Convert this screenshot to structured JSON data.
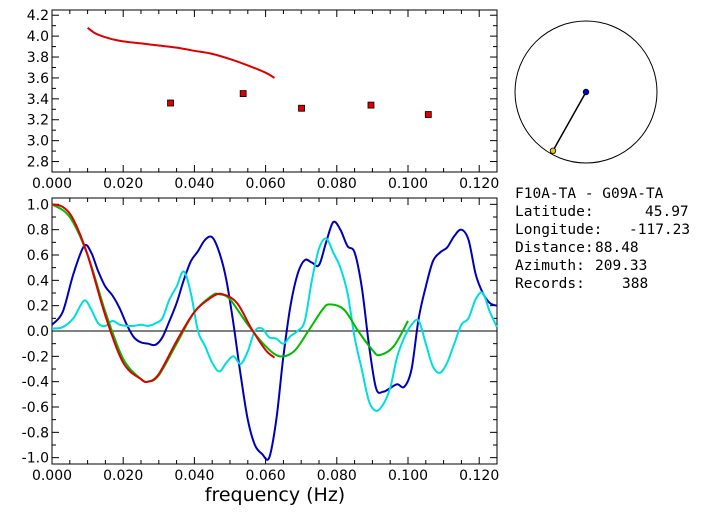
{
  "chart_data": [
    {
      "type": "scatter",
      "xlim": [
        0,
        0.125
      ],
      "ylim": [
        2.7,
        4.25
      ],
      "x_ticks": [
        0,
        0.02,
        0.04,
        0.06,
        0.08,
        0.1,
        0.12
      ],
      "x_tick_labels": [
        "0.000",
        "0.020",
        "0.040",
        "0.060",
        "0.080",
        "0.100",
        "0.120"
      ],
      "y_ticks": [
        2.8,
        3.0,
        3.2,
        3.4,
        3.6,
        3.8,
        4.0,
        4.2
      ],
      "y_tick_labels": [
        "2.8",
        "3.0",
        "3.2",
        "3.4",
        "3.6",
        "3.8",
        "4.0",
        "4.2"
      ],
      "series": [
        {
          "kind": "line",
          "color": "#dd0000",
          "x": [
            0.01,
            0.012,
            0.014,
            0.017,
            0.02,
            0.025,
            0.03,
            0.035,
            0.04,
            0.045,
            0.05,
            0.055,
            0.06,
            0.0625
          ],
          "y": [
            4.08,
            4.03,
            4.0,
            3.97,
            3.95,
            3.93,
            3.91,
            3.89,
            3.86,
            3.83,
            3.78,
            3.72,
            3.65,
            3.6
          ]
        },
        {
          "kind": "markers",
          "color": "#dd0000",
          "x": [
            0.0333,
            0.0537,
            0.0701,
            0.0896,
            0.1057
          ],
          "y": [
            3.36,
            3.45,
            3.31,
            3.34,
            3.25
          ]
        }
      ]
    },
    {
      "type": "line",
      "xlim": [
        0,
        0.125
      ],
      "ylim": [
        -1.05,
        1.05
      ],
      "x_ticks": [
        0,
        0.02,
        0.04,
        0.06,
        0.08,
        0.1,
        0.12
      ],
      "x_tick_labels": [
        "0.000",
        "0.020",
        "0.040",
        "0.060",
        "0.080",
        "0.100",
        "0.120"
      ],
      "y_ticks": [
        -1.0,
        -0.8,
        -0.6,
        -0.4,
        -0.2,
        0.0,
        0.2,
        0.4,
        0.6,
        0.8,
        1.0
      ],
      "y_tick_labels": [
        "-1.0",
        "-0.8",
        "-0.6",
        "-0.4",
        "-0.2",
        "0.0",
        "0.2",
        "0.4",
        "0.6",
        "0.8",
        "1.0"
      ],
      "xlabel": "frequency (Hz)",
      "series": [
        {
          "color": "#0000bb",
          "x": [
            0,
            0.003,
            0.006,
            0.009,
            0.011,
            0.013,
            0.015,
            0.017,
            0.019,
            0.021,
            0.023,
            0.025,
            0.027,
            0.029,
            0.031,
            0.033,
            0.035,
            0.037,
            0.039,
            0.041,
            0.043,
            0.045,
            0.047,
            0.049,
            0.051,
            0.053,
            0.055,
            0.057,
            0.059,
            0.061,
            0.063,
            0.065,
            0.067,
            0.069,
            0.071,
            0.073,
            0.075,
            0.077,
            0.079,
            0.081,
            0.083,
            0.085,
            0.087,
            0.089,
            0.091,
            0.093,
            0.095,
            0.097,
            0.099,
            0.101,
            0.103,
            0.105,
            0.107,
            0.109,
            0.111,
            0.113,
            0.115,
            0.117,
            0.119,
            0.121,
            0.123,
            0.125
          ],
          "y": [
            0.05,
            0.15,
            0.45,
            0.67,
            0.62,
            0.47,
            0.35,
            0.28,
            0.18,
            0.05,
            -0.05,
            -0.09,
            -0.1,
            -0.11,
            -0.05,
            0.08,
            0.22,
            0.4,
            0.55,
            0.63,
            0.72,
            0.74,
            0.62,
            0.4,
            0.05,
            -0.35,
            -0.7,
            -0.9,
            -0.97,
            -1.0,
            -0.7,
            -0.2,
            0.2,
            0.45,
            0.56,
            0.54,
            0.52,
            0.7,
            0.86,
            0.8,
            0.67,
            0.62,
            0.35,
            -0.1,
            -0.45,
            -0.48,
            -0.45,
            -0.42,
            -0.44,
            -0.3,
            0.1,
            0.35,
            0.55,
            0.62,
            0.66,
            0.75,
            0.8,
            0.72,
            0.45,
            0.3,
            0.22,
            0.2
          ]
        },
        {
          "color": "#00dddd",
          "x": [
            0,
            0.003,
            0.006,
            0.009,
            0.011,
            0.013,
            0.015,
            0.017,
            0.019,
            0.021,
            0.023,
            0.025,
            0.027,
            0.029,
            0.031,
            0.033,
            0.035,
            0.037,
            0.039,
            0.041,
            0.043,
            0.045,
            0.047,
            0.049,
            0.051,
            0.053,
            0.055,
            0.057,
            0.059,
            0.061,
            0.063,
            0.065,
            0.067,
            0.069,
            0.071,
            0.073,
            0.075,
            0.077,
            0.079,
            0.081,
            0.083,
            0.085,
            0.087,
            0.089,
            0.091,
            0.093,
            0.095,
            0.097,
            0.099,
            0.101,
            0.103,
            0.105,
            0.107,
            0.109,
            0.111,
            0.113,
            0.115,
            0.117,
            0.119,
            0.121,
            0.123,
            0.125
          ],
          "y": [
            0.02,
            0.03,
            0.1,
            0.24,
            0.17,
            0.06,
            0.04,
            0.08,
            0.05,
            0.04,
            0.04,
            0.05,
            0.04,
            0.06,
            0.1,
            0.25,
            0.35,
            0.47,
            0.3,
            0.0,
            -0.12,
            -0.25,
            -0.32,
            -0.25,
            -0.2,
            -0.26,
            -0.16,
            0.0,
            0.02,
            -0.05,
            -0.06,
            -0.1,
            -0.04,
            0.0,
            0.08,
            0.4,
            0.65,
            0.73,
            0.62,
            0.5,
            0.3,
            -0.05,
            -0.3,
            -0.55,
            -0.63,
            -0.58,
            -0.45,
            -0.2,
            -0.05,
            0.05,
            0.08,
            -0.1,
            -0.28,
            -0.33,
            -0.25,
            -0.1,
            0.05,
            0.1,
            0.25,
            0.3,
            0.15,
            0.03
          ]
        },
        {
          "color": "#00bb00",
          "x": [
            0.0,
            0.005,
            0.01,
            0.015,
            0.02,
            0.025,
            0.027,
            0.03,
            0.035,
            0.04,
            0.045,
            0.047,
            0.05,
            0.055,
            0.06,
            0.064,
            0.068,
            0.072,
            0.076,
            0.078,
            0.082,
            0.086,
            0.09,
            0.092,
            0.096,
            0.1
          ],
          "y": [
            1.0,
            0.9,
            0.6,
            0.15,
            -0.22,
            -0.38,
            -0.4,
            -0.35,
            -0.1,
            0.15,
            0.28,
            0.29,
            0.25,
            0.05,
            -0.12,
            -0.2,
            -0.16,
            0.0,
            0.17,
            0.21,
            0.17,
            0.0,
            -0.15,
            -0.19,
            -0.12,
            0.08
          ]
        },
        {
          "color": "#dd0000",
          "x": [
            0.0,
            0.003,
            0.006,
            0.01,
            0.015,
            0.02,
            0.025,
            0.027,
            0.03,
            0.035,
            0.04,
            0.045,
            0.048,
            0.052,
            0.056,
            0.06,
            0.0625
          ],
          "y": [
            1.0,
            0.98,
            0.88,
            0.6,
            0.12,
            -0.25,
            -0.38,
            -0.4,
            -0.34,
            -0.08,
            0.15,
            0.27,
            0.29,
            0.22,
            0.02,
            -0.15,
            -0.21
          ]
        }
      ]
    }
  ],
  "polar_plot": {
    "back_azimuth_deg": 209.33,
    "relative_distance": 0.95
  },
  "info": {
    "station_pair": "F10A-TA - G09A-TA",
    "latitude_label": "Latitude:",
    "latitude_value": "45.97",
    "longitude_label": "Longitude:",
    "longitude_value": "-117.23",
    "distance_label": "Distance:",
    "distance_value": "88.48",
    "azimuth_label": "Azimuth:",
    "azimuth_value": "209.33",
    "records_label": "Records:",
    "records_value": "388"
  }
}
